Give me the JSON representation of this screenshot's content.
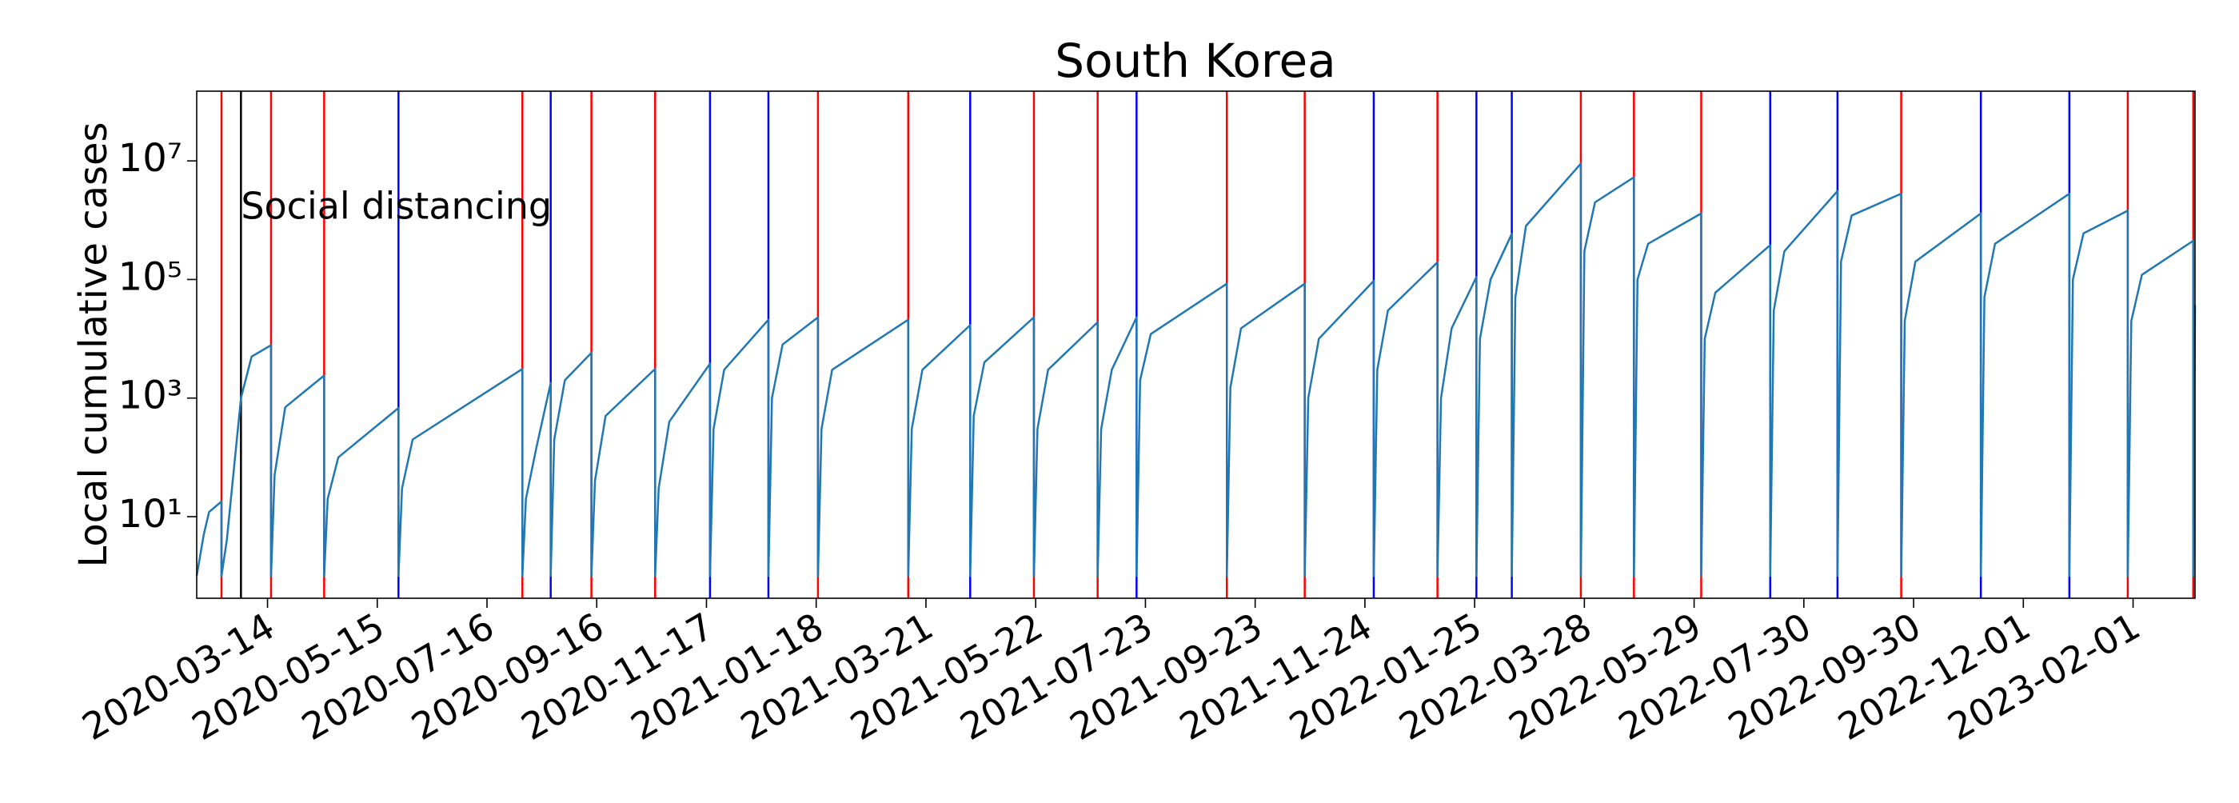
{
  "chart_data": {
    "type": "line",
    "title": "South Korea",
    "ylabel": "Local cumulative cases",
    "yscale": "log",
    "color": "#1f77b4",
    "x": [
      "2020-02-03",
      "2020-02-07",
      "2020-02-10",
      "2020-02-17",
      "2020-02-17",
      "2020-02-20",
      "2020-02-28",
      "2020-03-05",
      "2020-03-16",
      "2020-03-16",
      "2020-03-18",
      "2020-03-24",
      "2020-04-15",
      "2020-04-15",
      "2020-04-17",
      "2020-04-23",
      "2020-05-27",
      "2020-05-27",
      "2020-05-29",
      "2020-06-04",
      "2020-08-05",
      "2020-08-05",
      "2020-08-07",
      "2020-08-13",
      "2020-08-21",
      "2020-08-21",
      "2020-08-23",
      "2020-08-29",
      "2020-09-13",
      "2020-09-13",
      "2020-09-15",
      "2020-09-21",
      "2020-10-19",
      "2020-10-19",
      "2020-10-21",
      "2020-10-27",
      "2020-11-19",
      "2020-11-19",
      "2020-11-21",
      "2020-11-27",
      "2020-12-22",
      "2020-12-22",
      "2020-12-24",
      "2020-12-30",
      "2021-01-19",
      "2021-01-19",
      "2021-01-21",
      "2021-01-27",
      "2021-03-11",
      "2021-03-11",
      "2021-03-13",
      "2021-03-19",
      "2021-04-15",
      "2021-04-15",
      "2021-04-17",
      "2021-04-23",
      "2021-05-21",
      "2021-05-21",
      "2021-05-23",
      "2021-05-29",
      "2021-06-26",
      "2021-06-26",
      "2021-06-28",
      "2021-07-04",
      "2021-07-18",
      "2021-07-18",
      "2021-07-20",
      "2021-07-26",
      "2021-09-07",
      "2021-09-07",
      "2021-09-09",
      "2021-09-15",
      "2021-10-21",
      "2021-10-21",
      "2021-10-23",
      "2021-10-29",
      "2021-11-29",
      "2021-11-29",
      "2021-12-01",
      "2021-12-07",
      "2022-01-04",
      "2022-01-04",
      "2022-01-06",
      "2022-01-12",
      "2022-01-26",
      "2022-01-26",
      "2022-01-28",
      "2022-02-03",
      "2022-02-15",
      "2022-02-15",
      "2022-02-17",
      "2022-02-23",
      "2022-03-26",
      "2022-03-26",
      "2022-03-28",
      "2022-04-03",
      "2022-04-25",
      "2022-04-25",
      "2022-04-27",
      "2022-05-03",
      "2022-06-02",
      "2022-06-02",
      "2022-06-04",
      "2022-06-10",
      "2022-07-11",
      "2022-07-11",
      "2022-07-13",
      "2022-07-19",
      "2022-08-18",
      "2022-08-18",
      "2022-08-20",
      "2022-08-26",
      "2022-09-23",
      "2022-09-23",
      "2022-09-25",
      "2022-10-01",
      "2022-11-07",
      "2022-11-07",
      "2022-11-09",
      "2022-11-15",
      "2022-12-27",
      "2022-12-27",
      "2022-12-29",
      "2023-01-04",
      "2023-01-29",
      "2023-01-29",
      "2023-01-31",
      "2023-02-06",
      "2023-03-07",
      "2023-03-07",
      "2023-03-08"
    ],
    "values": [
      1,
      5,
      12,
      18,
      1,
      4,
      1000,
      5000,
      7800,
      1,
      50,
      700,
      2400,
      1,
      20,
      100,
      680,
      1,
      30,
      200,
      3100,
      1,
      20,
      150,
      1800,
      1,
      200,
      2000,
      5800,
      1,
      40,
      500,
      3100,
      1,
      30,
      400,
      3800,
      1,
      300,
      3000,
      21000,
      1,
      1000,
      8000,
      23000,
      1,
      300,
      3000,
      21000,
      1,
      300,
      3000,
      17000,
      1,
      500,
      4000,
      23000,
      1,
      300,
      3000,
      19000,
      1,
      300,
      3000,
      23000,
      1,
      2000,
      12000,
      85000,
      1,
      1500,
      15000,
      85000,
      1,
      1000,
      10000,
      95000,
      1,
      3000,
      30000,
      195000,
      1,
      1000,
      15000,
      110000,
      1,
      10000,
      100000,
      590000,
      1,
      50000,
      800000,
      9000000,
      1,
      300000,
      2000000,
      5300000,
      1,
      100000,
      400000,
      1300000,
      1,
      10000,
      60000,
      380000,
      1,
      30000,
      300000,
      3100000,
      1,
      200000,
      1200000,
      2800000,
      1,
      20000,
      200000,
      1300000,
      1,
      50000,
      400000,
      2800000,
      1,
      100000,
      600000,
      1450000,
      1,
      20000,
      120000,
      450000,
      1,
      37000
    ],
    "event_lines": [
      {
        "color": "#ff0000",
        "x": [
          "2020-02-17",
          "2020-03-16",
          "2020-04-15",
          "2020-08-05",
          "2020-09-13",
          "2020-10-19",
          "2021-01-19",
          "2021-03-11",
          "2021-05-21",
          "2021-06-26",
          "2021-09-07",
          "2021-10-21",
          "2022-01-04",
          "2022-03-26",
          "2022-04-25",
          "2022-06-02",
          "2022-09-23",
          "2023-01-29",
          "2023-03-07"
        ]
      },
      {
        "color": "#0000ff",
        "x": [
          "2020-05-27",
          "2020-08-21",
          "2020-11-19",
          "2020-12-22",
          "2021-04-15",
          "2021-07-18",
          "2021-11-29",
          "2022-01-26",
          "2022-02-15",
          "2022-07-11",
          "2022-08-18",
          "2022-11-07",
          "2022-12-27"
        ]
      }
    ],
    "annotations": [
      {
        "text": "Social distancing",
        "x": "2020-02-28",
        "color": "#000000"
      }
    ],
    "xlim": [
      "2020-02-03",
      "2023-03-08"
    ],
    "xticks": [
      "2020-03-14",
      "2020-05-15",
      "2020-07-16",
      "2020-09-16",
      "2020-11-17",
      "2021-01-18",
      "2021-03-21",
      "2021-05-22",
      "2021-07-23",
      "2021-09-23",
      "2021-11-24",
      "2022-01-25",
      "2022-03-28",
      "2022-05-29",
      "2022-07-30",
      "2022-09-30",
      "2022-12-01",
      "2023-02-01"
    ],
    "ylim": [
      0.42,
      150000000
    ],
    "yticks": [
      {
        "value": 10,
        "label": "10¹"
      },
      {
        "value": 1000,
        "label": "10³"
      },
      {
        "value": 100000,
        "label": "10⁵"
      },
      {
        "value": 10000000,
        "label": "10⁷"
      }
    ]
  }
}
